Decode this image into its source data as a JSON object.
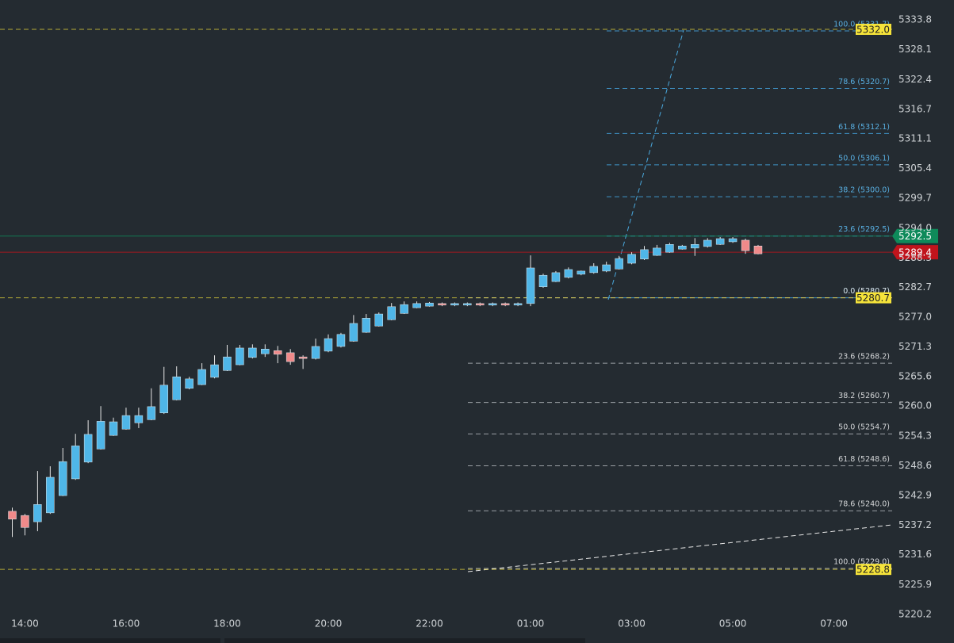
{
  "chart_data": {
    "type": "candlestick",
    "categories": [
      null,
      "14:00",
      null,
      null,
      null,
      null,
      null,
      null,
      null,
      "16:00",
      null,
      null,
      null,
      null,
      null,
      null,
      null,
      "18:00",
      null,
      null,
      null,
      null,
      null,
      null,
      null,
      "20:00",
      null,
      null,
      null,
      null,
      null,
      null,
      null,
      "22:00",
      null,
      null,
      null,
      null,
      null,
      null,
      null,
      "01:00",
      null,
      null,
      null,
      null,
      null,
      null,
      null,
      "03:00",
      null,
      null,
      null,
      null,
      null,
      null,
      null,
      "05:00",
      null,
      null,
      null,
      null,
      null,
      null,
      null,
      "07:00",
      null,
      null,
      null,
      null
    ],
    "open": [
      5239.9,
      5239.1,
      5237.9,
      5239.6,
      5242.9,
      5246.1,
      5249.3,
      5251.8,
      5254.4,
      5255.6,
      5256.8,
      5257.4,
      5258.7,
      5261.2,
      5263.4,
      5264.1,
      5265.5,
      5266.8,
      5267.9,
      5269.3,
      5270.0,
      5270.6,
      5270.2,
      5269.4,
      5269.1,
      5270.5,
      5271.4,
      5272.4,
      5274.1,
      5275.3,
      5276.5,
      5277.7,
      5278.8,
      5279.1,
      5279.6,
      5279.3,
      5279.3,
      5279.6,
      5279.3,
      5279.6,
      5279.3,
      5279.6,
      5282.8,
      5283.8,
      5284.6,
      5285.2,
      5285.5,
      5285.8,
      5286.2,
      5287.3,
      5288.1,
      5288.8,
      5289.4,
      5290.0,
      5290.2,
      5290.5,
      5290.9,
      5291.4,
      5291.7,
      5290.6,
      null,
      null,
      null,
      null,
      null,
      null,
      null,
      null,
      null,
      null
    ],
    "high": [
      5240.6,
      5239.4,
      5247.6,
      5248.5,
      5252.0,
      5254.7,
      5257.3,
      5260.0,
      5257.8,
      5259.7,
      5259.7,
      5263.4,
      5267.5,
      5267.6,
      5265.6,
      5268.2,
      5269.7,
      5271.7,
      5271.7,
      5271.8,
      5271.8,
      5271.5,
      5270.9,
      5269.7,
      5272.9,
      5273.7,
      5274.0,
      5277.4,
      5277.6,
      5277.9,
      5279.7,
      5280.0,
      5280.0,
      5279.9,
      5279.8,
      5279.8,
      5279.8,
      5279.8,
      5279.8,
      5279.8,
      5279.8,
      5288.8,
      5285.3,
      5285.8,
      5286.5,
      5285.9,
      5287.3,
      5287.6,
      5288.7,
      5289.4,
      5290.6,
      5290.8,
      5291.2,
      5290.8,
      5292.1,
      5292.1,
      5292.3,
      5292.3,
      5292.0,
      5290.8,
      null,
      null,
      null,
      null,
      null,
      null,
      null,
      null,
      null,
      null
    ],
    "low": [
      5235.0,
      5235.3,
      5236.1,
      5239.4,
      5242.8,
      5245.9,
      5249.1,
      5251.7,
      5254.3,
      5255.5,
      5255.8,
      5257.3,
      5258.5,
      5261.1,
      5263.2,
      5264.0,
      5265.3,
      5266.7,
      5267.8,
      5269.1,
      5269.4,
      5268.2,
      5267.9,
      5267.1,
      5268.9,
      5270.3,
      5271.2,
      5272.3,
      5274.0,
      5275.2,
      5276.4,
      5277.6,
      5278.7,
      5279.0,
      5279.1,
      5279.1,
      5279.1,
      5279.1,
      5279.1,
      5279.1,
      5279.1,
      5279.1,
      5282.6,
      5283.7,
      5284.4,
      5285.0,
      5285.3,
      5285.6,
      5286.1,
      5287.1,
      5287.9,
      5288.7,
      5289.3,
      5289.9,
      5288.7,
      5290.3,
      5290.8,
      5291.2,
      5289.1,
      5289.0,
      null,
      null,
      null,
      null,
      null,
      null,
      null,
      null,
      null,
      null
    ],
    "close": [
      5238.4,
      5236.8,
      5241.2,
      5246.4,
      5249.4,
      5252.4,
      5254.6,
      5257.1,
      5257.0,
      5258.2,
      5258.2,
      5259.9,
      5264.0,
      5265.6,
      5265.2,
      5267.0,
      5267.9,
      5269.4,
      5271.1,
      5271.1,
      5270.9,
      5269.9,
      5268.5,
      5269.1,
      5271.4,
      5272.9,
      5273.7,
      5275.8,
      5276.8,
      5277.6,
      5279.0,
      5279.4,
      5279.6,
      5279.7,
      5279.3,
      5279.6,
      5279.6,
      5279.3,
      5279.6,
      5279.3,
      5279.6,
      5286.4,
      5285.0,
      5285.5,
      5286.1,
      5285.8,
      5286.7,
      5287.0,
      5288.2,
      5289.0,
      5289.9,
      5290.2,
      5290.9,
      5290.6,
      5290.9,
      5291.7,
      5292.0,
      5292.0,
      5289.7,
      5289.1,
      null,
      null,
      null,
      null,
      null,
      null,
      null,
      null,
      null,
      null
    ],
    "up_color": "#4fb6e8",
    "down_color": "#f08a8a",
    "ylim": [
      5216.4,
      5337.6
    ],
    "yticks": [
      5333.8,
      5328.1,
      5322.4,
      5316.7,
      5311.1,
      5305.4,
      5299.7,
      {
        "value": 5294.0,
        "label": "5294.0"
      },
      5288.3,
      5282.7,
      {
        "value": 5277.0,
        "label": "5277.0"
      },
      5271.3,
      5265.6,
      {
        "value": 5260.0,
        "label": "5260.0"
      },
      5254.3,
      5248.6,
      5242.9,
      5237.2,
      5231.6,
      5225.9,
      5220.2
    ],
    "price_lines": [
      {
        "value": 5332.0,
        "label": "5332.0",
        "color": "#f5e33a",
        "style": "dashed"
      },
      {
        "value": 5292.5,
        "label": "5292.5",
        "color": "#0e8a5a",
        "style": "solid"
      },
      {
        "value": 5289.4,
        "label": "5289.4",
        "color": "#c0141c",
        "style": "solid"
      },
      {
        "value": 5280.7,
        "label": "5280.7",
        "color": "#f5e33a",
        "style": "dashed"
      },
      {
        "value": 5228.8,
        "label": "5228.8",
        "color": "#f5e33a",
        "style": "dashed"
      }
    ],
    "fib_upper": {
      "color": "#3f93c6",
      "text_color": "#58aee0",
      "levels": [
        {
          "value": 5331.7,
          "label": "100.0 (5331.7)"
        },
        {
          "value": 5320.7,
          "label": "78.6 (5320.7)"
        },
        {
          "value": 5312.1,
          "label": "61.8 (5312.1)"
        },
        {
          "value": 5306.1,
          "label": "50.0 (5306.1)"
        },
        {
          "value": 5300.0,
          "label": "38.2 (5300.0)"
        },
        {
          "value": 5292.5,
          "label": "23.6 (5292.5)"
        },
        {
          "value": 5280.7,
          "label": "0.0 (5280.7)"
        }
      ]
    },
    "fib_lower": {
      "color": "#9aa0a5",
      "text_color": "#d4d6d8",
      "levels": [
        {
          "value": 5280.7,
          "label": "0.0 (5280.7)"
        },
        {
          "value": 5268.2,
          "label": "23.6 (5268.2)"
        },
        {
          "value": 5260.7,
          "label": "38.2 (5260.7)"
        },
        {
          "value": 5254.7,
          "label": "50.0 (5254.7)"
        },
        {
          "value": 5248.6,
          "label": "61.8 (5248.6)"
        },
        {
          "value": 5240.0,
          "label": "78.6 (5240.0)"
        },
        {
          "value": 5229.0,
          "label": "100.0 (5229.0)"
        }
      ]
    }
  }
}
